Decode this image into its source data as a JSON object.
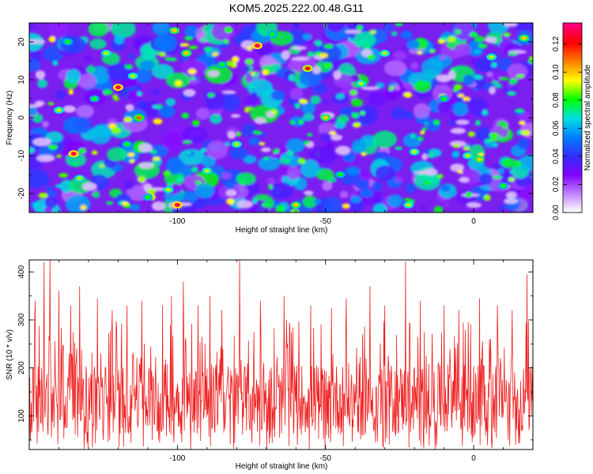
{
  "title": "KOM5.2025.222.00.48.G11",
  "chart_data": [
    {
      "type": "heatmap",
      "xlabel": "Height of straight line (km)",
      "ylabel": "Frequency (Hz)",
      "xlim": [
        -150,
        20
      ],
      "ylim": [
        -25,
        25
      ],
      "xticks": [
        -100,
        -50,
        0
      ],
      "yticks": [
        -20,
        -10,
        0,
        10,
        20
      ],
      "colorbar": {
        "label": "Normalized spectral amplitude",
        "range": [
          0,
          0.135
        ],
        "ticks": [
          "0.00",
          "0.02",
          "0.04",
          "0.06",
          "0.08",
          "0.10",
          "0.12"
        ],
        "colors": [
          "#ffffff",
          "#c080ff",
          "#8000ff",
          "#3030ff",
          "#0080ff",
          "#00e0e0",
          "#00ff00",
          "#ffff00",
          "#ff8000",
          "#ff0000",
          "#ff0080"
        ]
      },
      "peaks": [
        {
          "x": -140,
          "y": 2,
          "v": 0.09
        },
        {
          "x": -137,
          "y": 20,
          "v": 0.08
        },
        {
          "x": -135,
          "y": -9.5,
          "v": 0.13
        },
        {
          "x": -133,
          "y": -16,
          "v": 0.09
        },
        {
          "x": -128,
          "y": 5,
          "v": 0.08
        },
        {
          "x": -124,
          "y": 17,
          "v": 0.09
        },
        {
          "x": -120,
          "y": 8,
          "v": 0.13
        },
        {
          "x": -117,
          "y": -7,
          "v": 0.08
        },
        {
          "x": -115,
          "y": 11,
          "v": 0.09
        },
        {
          "x": -113,
          "y": 0,
          "v": 0.11
        },
        {
          "x": -110,
          "y": -21,
          "v": 0.08
        },
        {
          "x": -103,
          "y": -19,
          "v": 0.09
        },
        {
          "x": -101,
          "y": 23,
          "v": 0.1
        },
        {
          "x": -100,
          "y": -23,
          "v": 0.13
        },
        {
          "x": -97,
          "y": 17,
          "v": 0.1
        },
        {
          "x": -90,
          "y": -14,
          "v": 0.09
        },
        {
          "x": -85,
          "y": 14,
          "v": 0.08
        },
        {
          "x": -80,
          "y": -7,
          "v": 0.09
        },
        {
          "x": -73,
          "y": 19,
          "v": 0.13
        },
        {
          "x": -68,
          "y": 22,
          "v": 0.08
        },
        {
          "x": -60,
          "y": -23,
          "v": 0.1
        },
        {
          "x": -56,
          "y": 13,
          "v": 0.12
        },
        {
          "x": -50,
          "y": 0,
          "v": 0.1
        },
        {
          "x": -45,
          "y": -15,
          "v": 0.08
        },
        {
          "x": -38,
          "y": 9,
          "v": 0.09
        },
        {
          "x": -30,
          "y": 17,
          "v": 0.09
        },
        {
          "x": -22,
          "y": -23,
          "v": 0.09
        },
        {
          "x": -20,
          "y": -9,
          "v": 0.09
        },
        {
          "x": -10,
          "y": 5,
          "v": 0.08
        },
        {
          "x": -2,
          "y": -10,
          "v": 0.09
        },
        {
          "x": 2,
          "y": -11,
          "v": 0.1
        },
        {
          "x": 6,
          "y": 16,
          "v": 0.09
        },
        {
          "x": 10,
          "y": -18,
          "v": 0.08
        },
        {
          "x": 17,
          "y": 21,
          "v": 0.1
        }
      ]
    },
    {
      "type": "line",
      "xlabel": "Height of straight line (km)",
      "ylabel": "SNR (10 * v/v)",
      "xlim": [
        -150,
        20
      ],
      "ylim": [
        30,
        425
      ],
      "xticks": [
        -100,
        -50,
        0
      ],
      "yticks": [
        100,
        200,
        300,
        400
      ],
      "line_color": "#ee2020",
      "typical_range": [
        60,
        210
      ],
      "points_per_km": 6,
      "spikes": [
        {
          "x": -148,
          "y": 340
        },
        {
          "x": -145,
          "y": 420
        },
        {
          "x": -143,
          "y": 425
        },
        {
          "x": -140,
          "y": 360
        },
        {
          "x": -136,
          "y": 330
        },
        {
          "x": -133,
          "y": 370
        },
        {
          "x": -127,
          "y": 345
        },
        {
          "x": -122,
          "y": 320
        },
        {
          "x": -117,
          "y": 330
        },
        {
          "x": -112,
          "y": 340
        },
        {
          "x": -105,
          "y": 330
        },
        {
          "x": -102,
          "y": 350
        },
        {
          "x": -98,
          "y": 380
        },
        {
          "x": -93,
          "y": 330
        },
        {
          "x": -89,
          "y": 350
        },
        {
          "x": -85,
          "y": 320
        },
        {
          "x": -79,
          "y": 425
        },
        {
          "x": -72,
          "y": 340
        },
        {
          "x": -64,
          "y": 350
        },
        {
          "x": -55,
          "y": 330
        },
        {
          "x": -48,
          "y": 325
        },
        {
          "x": -43,
          "y": 345
        },
        {
          "x": -35,
          "y": 370
        },
        {
          "x": -30,
          "y": 330
        },
        {
          "x": -23,
          "y": 422
        },
        {
          "x": -18,
          "y": 340
        },
        {
          "x": -10,
          "y": 330
        },
        {
          "x": -5,
          "y": 320
        },
        {
          "x": 2,
          "y": 345
        },
        {
          "x": 8,
          "y": 330
        },
        {
          "x": 13,
          "y": 320
        },
        {
          "x": 18,
          "y": 395
        }
      ]
    }
  ]
}
